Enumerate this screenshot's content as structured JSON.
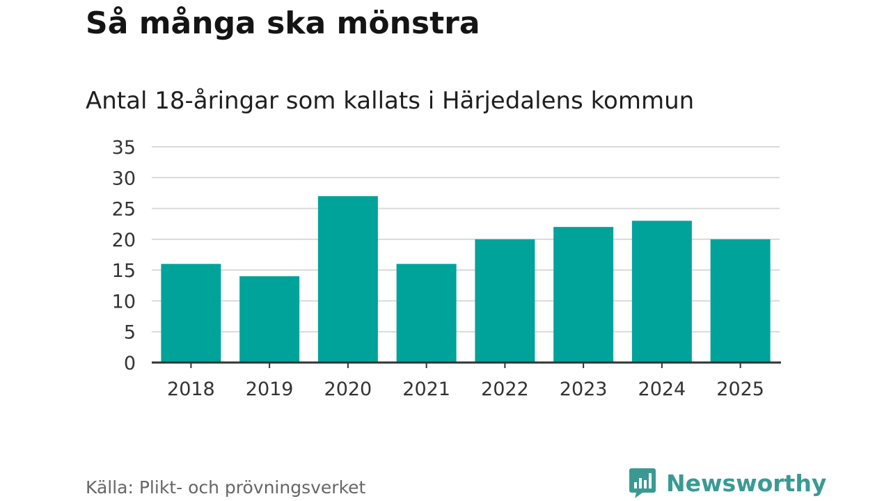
{
  "chart_data": {
    "type": "bar",
    "title": "Så många ska mönstra",
    "subtitle": "Antal 18-åringar som kallats i Härjedalens kommun",
    "categories": [
      "2018",
      "2019",
      "2020",
      "2021",
      "2022",
      "2023",
      "2024",
      "2025"
    ],
    "values": [
      16,
      14,
      27,
      16,
      20,
      22,
      23,
      20
    ],
    "yticks": [
      0,
      5,
      10,
      15,
      20,
      25,
      30,
      35
    ],
    "ylim": [
      0,
      35
    ],
    "xlabel": "",
    "ylabel": "",
    "grid": true,
    "legend": "none"
  },
  "source": "Källa: Plikt- och prövningsverket",
  "brand": {
    "name": "Newsworthy",
    "icon": "newsworthy-logo-icon"
  },
  "colors": {
    "bar": "#00a39a",
    "grid": "#d9d9d9",
    "axis": "#333333",
    "brand": "#3a9a93"
  }
}
